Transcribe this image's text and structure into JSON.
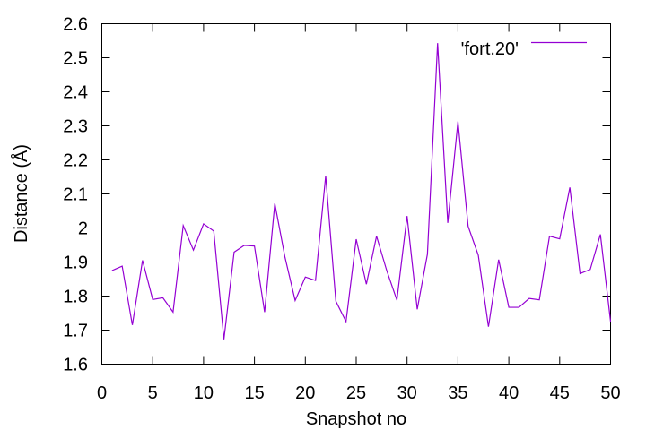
{
  "chart_data": {
    "type": "line",
    "xlabel": "Snapshot no",
    "ylabel": "Distance (Å)",
    "xlim": [
      0,
      50
    ],
    "ylim": [
      1.6,
      2.6
    ],
    "xticks": [
      0,
      5,
      10,
      15,
      20,
      25,
      30,
      35,
      40,
      45,
      50
    ],
    "yticks": [
      1.6,
      1.7,
      1.8,
      1.9,
      2.0,
      2.1,
      2.2,
      2.3,
      2.4,
      2.5,
      2.6
    ],
    "xtick_labels": [
      "0",
      "5",
      "10",
      "15",
      "20",
      "25",
      "30",
      "35",
      "40",
      "45",
      "50"
    ],
    "ytick_labels": [
      "1.6",
      "1.7",
      "1.8",
      "1.9",
      "2",
      "2.1",
      "2.2",
      "2.3",
      "2.4",
      "2.5",
      "2.6"
    ],
    "grid": false,
    "legend_position": "top-right",
    "series": [
      {
        "name": "'fort.20'",
        "color": "#9400d3",
        "x": [
          1,
          2,
          3,
          4,
          5,
          6,
          7,
          8,
          9,
          10,
          11,
          12,
          13,
          14,
          15,
          16,
          17,
          18,
          19,
          20,
          21,
          22,
          23,
          24,
          25,
          26,
          27,
          28,
          29,
          30,
          31,
          32,
          33,
          34,
          35,
          36,
          37,
          38,
          39,
          40,
          41,
          42,
          43,
          44,
          45,
          46,
          47,
          48,
          49,
          50
        ],
        "y": [
          1.875,
          1.888,
          1.715,
          1.905,
          1.79,
          1.795,
          1.753,
          2.007,
          1.935,
          2.012,
          1.991,
          1.673,
          1.929,
          1.949,
          1.947,
          1.753,
          2.072,
          1.914,
          1.787,
          1.856,
          1.846,
          2.153,
          1.785,
          1.725,
          1.967,
          1.835,
          1.976,
          1.875,
          1.788,
          2.035,
          1.761,
          1.923,
          2.543,
          2.015,
          2.313,
          2.005,
          1.92,
          1.71,
          1.907,
          1.767,
          1.767,
          1.793,
          1.789,
          1.976,
          1.968,
          2.119,
          1.866,
          1.878,
          1.981,
          1.725
        ]
      }
    ]
  }
}
